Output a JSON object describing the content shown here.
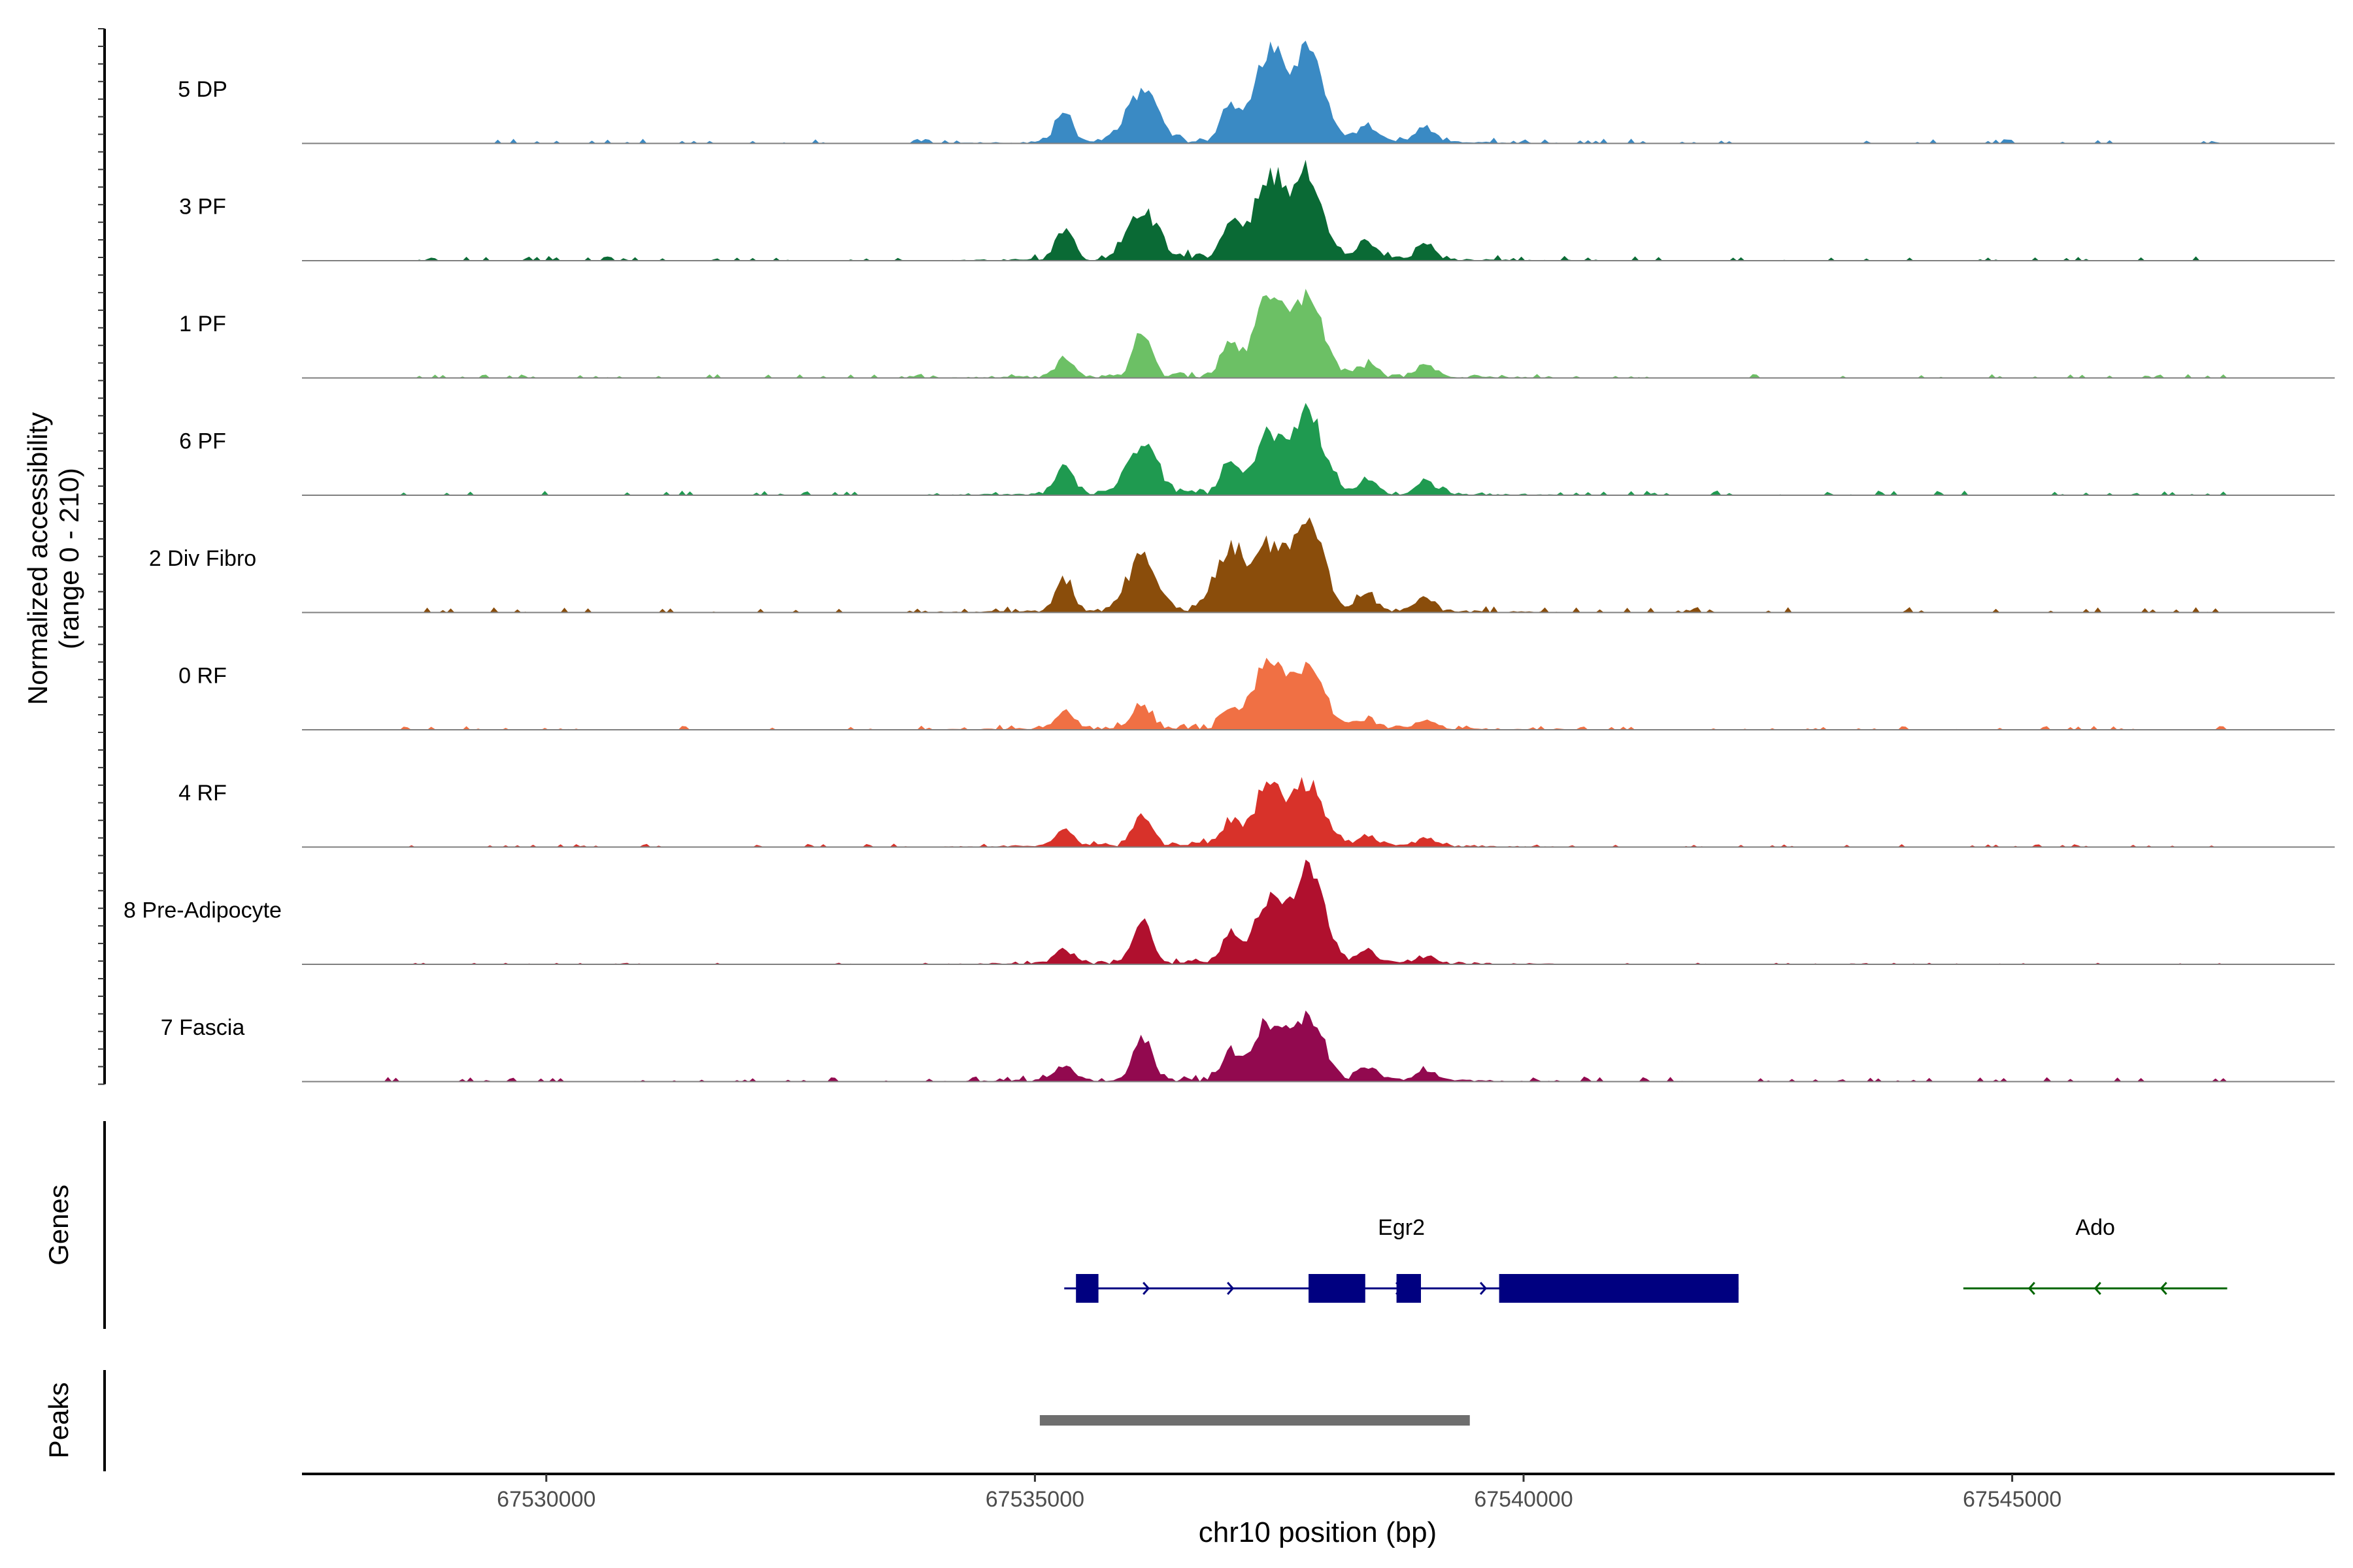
{
  "chart_data": {
    "type": "area",
    "title": "",
    "xlabel": "chr10 position (bp)",
    "ylabel_line1": "Normalized accessibility",
    "ylabel_line2": "(range 0 - 210)",
    "ylim": [
      0,
      210
    ],
    "xlim": [
      67527500,
      67548300
    ],
    "x_ticks": [
      67530000,
      67535000,
      67540000,
      67545000
    ],
    "x_tick_labels": [
      "67530000",
      "67535000",
      "67540000",
      "67545000"
    ],
    "peak_positions": [
      67535300,
      67536100,
      67537000,
      67537400,
      67537800,
      67538400,
      67539000
    ],
    "series": [
      {
        "name": "5 DP",
        "label": "5 DP",
        "color": "#3a8ac4",
        "peaks": [
          [
            67535300,
            60
          ],
          [
            67536100,
            120
          ],
          [
            67537000,
            80
          ],
          [
            67537400,
            190
          ],
          [
            67537800,
            195
          ],
          [
            67538400,
            40
          ],
          [
            67539000,
            35
          ]
        ],
        "bg": 6,
        "start": 67528300,
        "end": 67547200
      },
      {
        "name": "3 PF",
        "label": "3 PF",
        "color": "#0a6a35",
        "peaks": [
          [
            67535300,
            70
          ],
          [
            67536100,
            110
          ],
          [
            67537000,
            80
          ],
          [
            67537400,
            180
          ],
          [
            67537800,
            185
          ],
          [
            67538400,
            40
          ],
          [
            67539000,
            40
          ]
        ],
        "bg": 6,
        "start": 67528300,
        "end": 67547200
      },
      {
        "name": "1 PF",
        "label": "1 PF",
        "color": "#6cc065",
        "peaks": [
          [
            67535300,
            40
          ],
          [
            67536100,
            100
          ],
          [
            67537000,
            70
          ],
          [
            67537400,
            180
          ],
          [
            67537800,
            175
          ],
          [
            67538400,
            25
          ],
          [
            67539000,
            25
          ]
        ],
        "bg": 5,
        "start": 67528300,
        "end": 67547200
      },
      {
        "name": "6 PF",
        "label": "6 PF",
        "color": "#1f9a50",
        "peaks": [
          [
            67535300,
            60
          ],
          [
            67536100,
            110
          ],
          [
            67537000,
            60
          ],
          [
            67537400,
            130
          ],
          [
            67537800,
            185
          ],
          [
            67538400,
            30
          ],
          [
            67539000,
            30
          ]
        ],
        "bg": 6,
        "start": 67528300,
        "end": 67547200
      },
      {
        "name": "2 Div Fibro",
        "label": "2 Div Fibro",
        "color": "#8a4d0b",
        "peaks": [
          [
            67535300,
            70
          ],
          [
            67536100,
            120
          ],
          [
            67537000,
            130
          ],
          [
            67537400,
            140
          ],
          [
            67537800,
            210
          ],
          [
            67538400,
            40
          ],
          [
            67539000,
            30
          ]
        ],
        "bg": 7,
        "start": 67528300,
        "end": 67547200
      },
      {
        "name": "0 RF",
        "label": "0 RF",
        "color": "#f07044",
        "peaks": [
          [
            67535300,
            40
          ],
          [
            67536100,
            55
          ],
          [
            67537000,
            40
          ],
          [
            67537400,
            155
          ],
          [
            67537800,
            135
          ],
          [
            67538400,
            20
          ],
          [
            67539000,
            20
          ]
        ],
        "bg": 5,
        "start": 67528300,
        "end": 67547200
      },
      {
        "name": "4 RF",
        "label": "4 RF",
        "color": "#d8322a",
        "peaks": [
          [
            67535300,
            35
          ],
          [
            67536100,
            75
          ],
          [
            67537000,
            50
          ],
          [
            67537400,
            135
          ],
          [
            67537800,
            130
          ],
          [
            67538400,
            20
          ],
          [
            67539000,
            15
          ]
        ],
        "bg": 4,
        "start": 67528300,
        "end": 67547200
      },
      {
        "name": "8 Pre-Adipocyte",
        "label": "8 Pre-Adipocyte",
        "color": "#b0102e",
        "peaks": [
          [
            67535300,
            30
          ],
          [
            67536100,
            95
          ],
          [
            67537000,
            60
          ],
          [
            67537400,
            130
          ],
          [
            67537800,
            210
          ],
          [
            67538400,
            30
          ],
          [
            67539000,
            15
          ]
        ],
        "bg": 2,
        "start": 67528300,
        "end": 67547200
      },
      {
        "name": "7 Fascia",
        "label": "7 Fascia",
        "color": "#92094f",
        "peaks": [
          [
            67535300,
            35
          ],
          [
            67536100,
            95
          ],
          [
            67537000,
            60
          ],
          [
            67537400,
            130
          ],
          [
            67537800,
            135
          ],
          [
            67538400,
            25
          ],
          [
            67539000,
            20
          ]
        ],
        "bg": 6,
        "start": 67528300,
        "end": 67547200
      }
    ],
    "genes_label": "Genes",
    "genes": [
      {
        "name": "Egr2",
        "color": "#000080",
        "strand": "+",
        "start": 67535300,
        "end": 67542200,
        "exons": [
          [
            67535420,
            67535650
          ],
          [
            67537800,
            67538380
          ],
          [
            67538700,
            67538950
          ],
          [
            67539750,
            67542200
          ]
        ]
      },
      {
        "name": "Ado",
        "color": "#006400",
        "strand": "-",
        "start": 67544500,
        "end": 67547200,
        "exons": []
      }
    ],
    "peaks_label": "Peaks",
    "peak_regions": [
      [
        67535050,
        67539450
      ]
    ]
  }
}
